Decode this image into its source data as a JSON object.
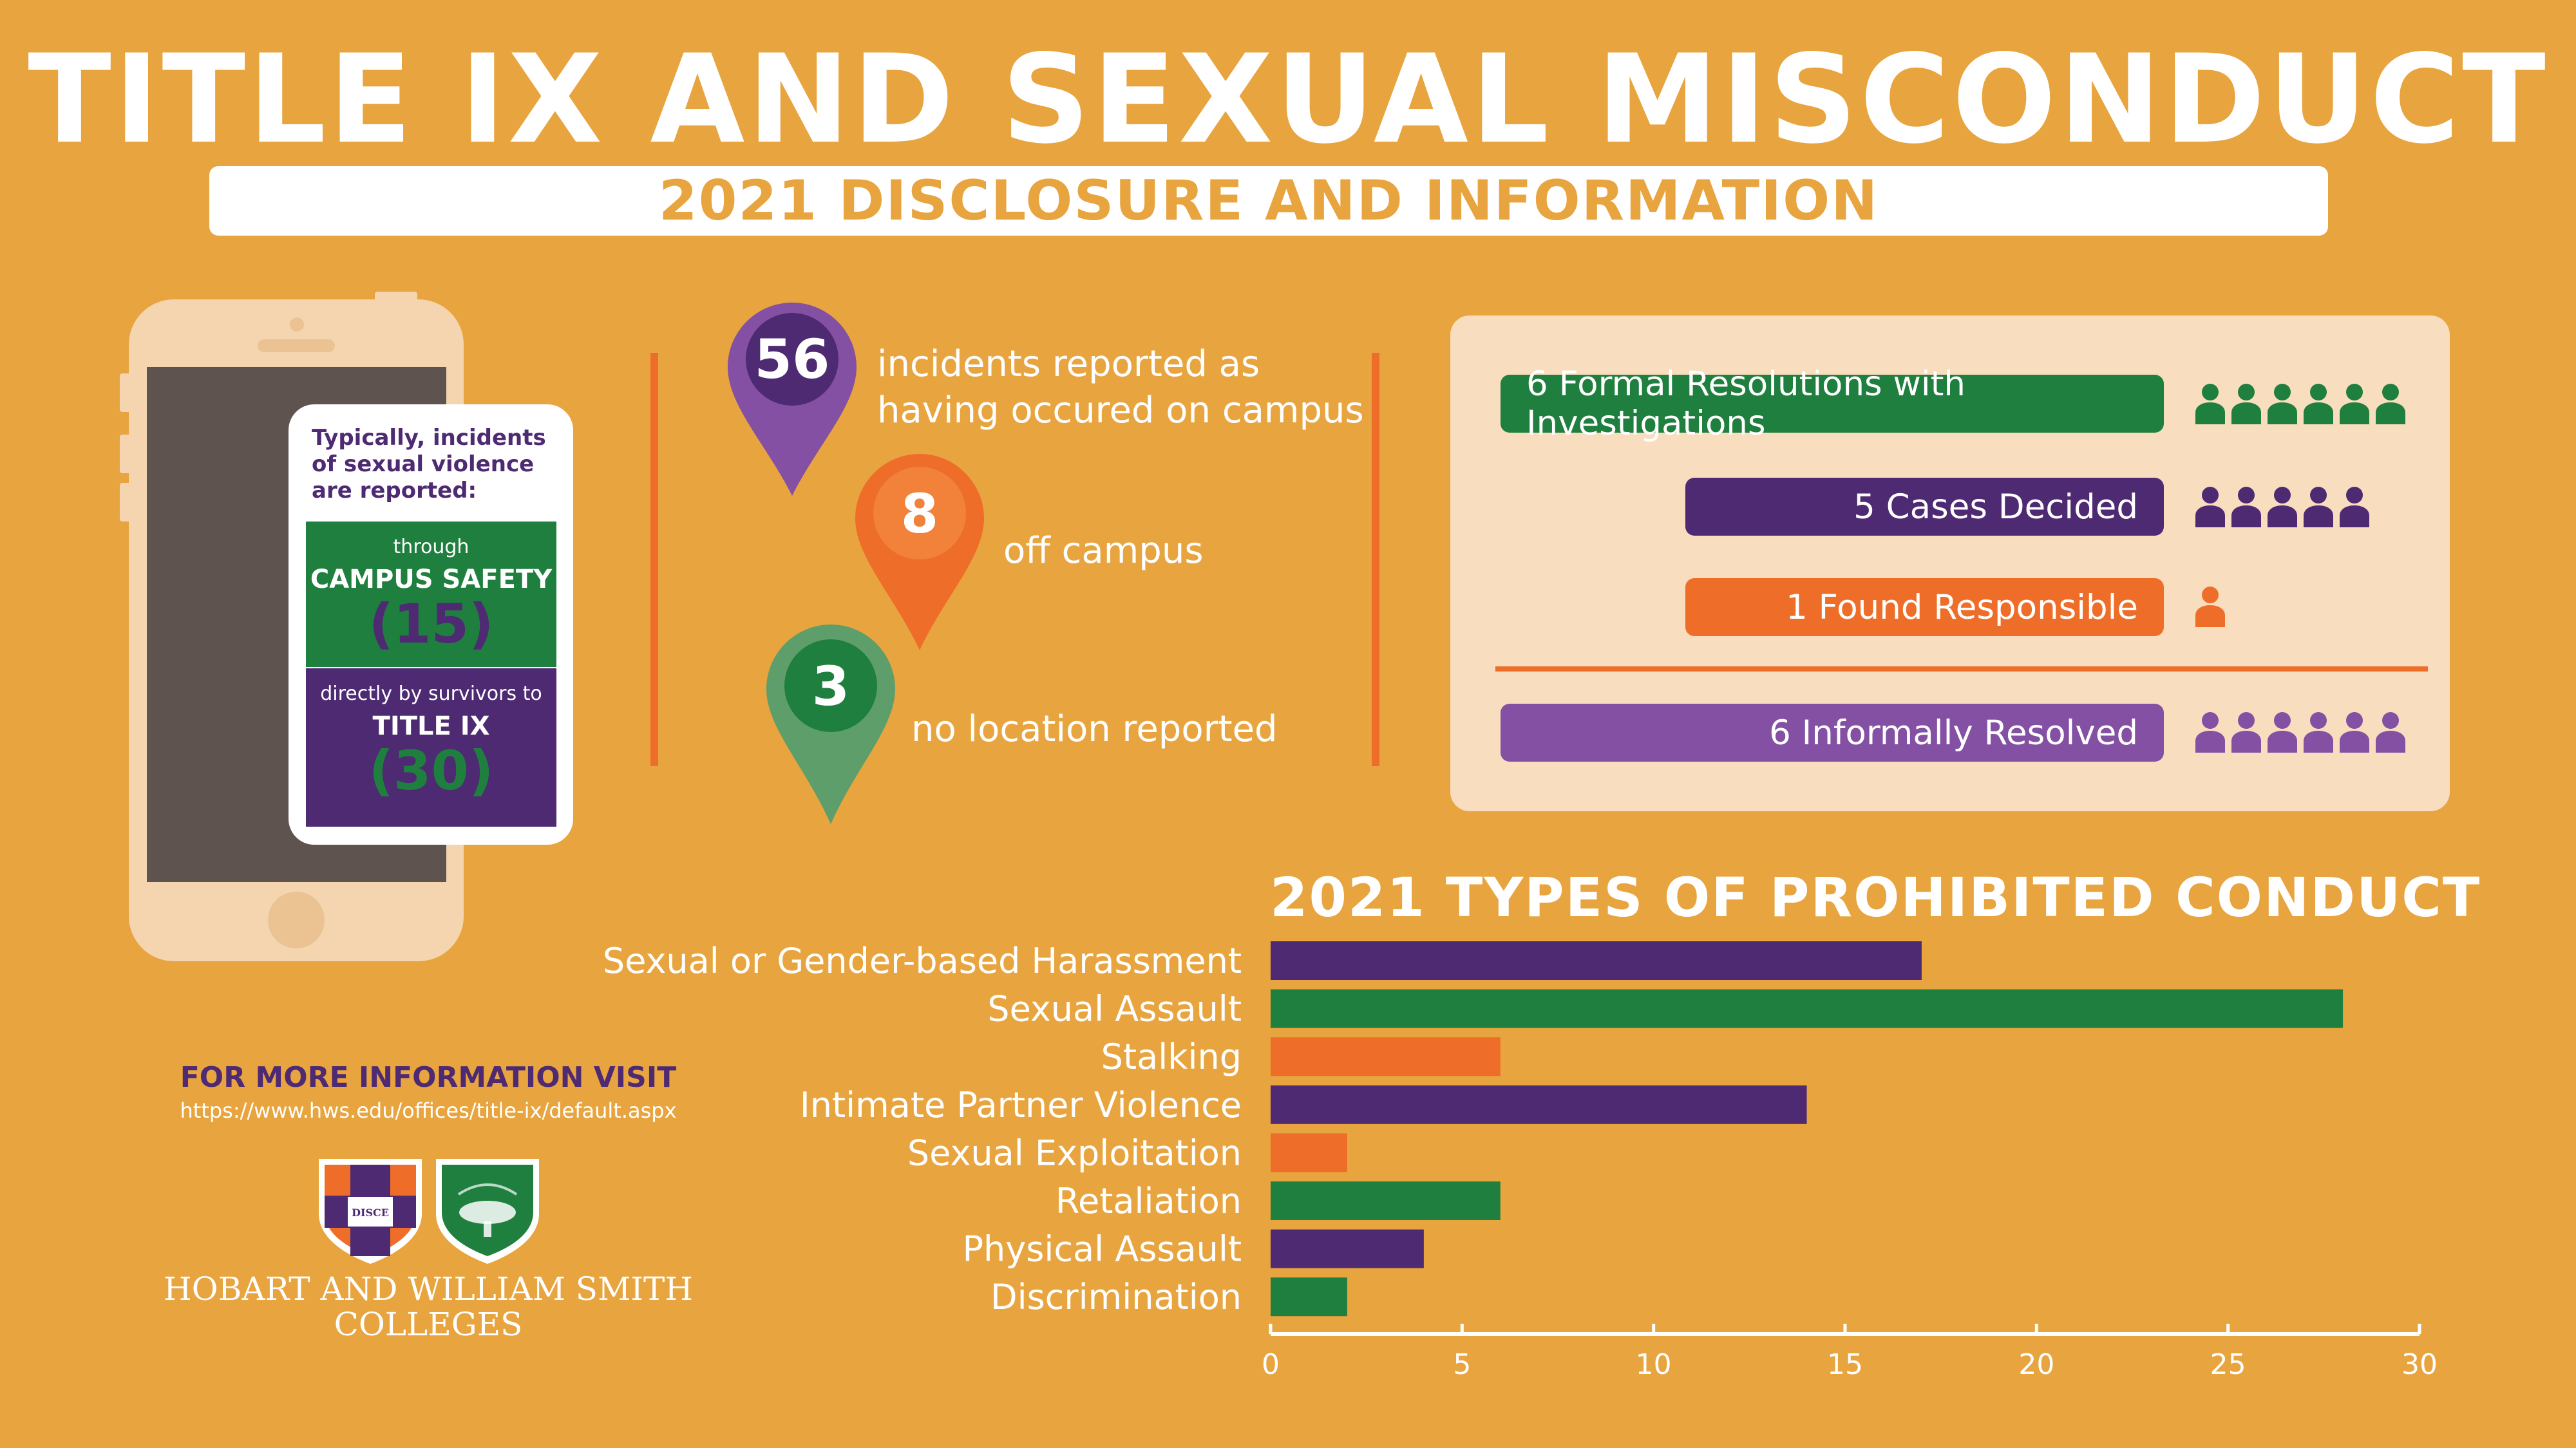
{
  "header": {
    "title": "TITLE IX AND SEXUAL MISCONDUCT",
    "subtitle": "2021 DISCLOSURE AND INFORMATION"
  },
  "colors": {
    "background": "#E8A43E",
    "purple": "#4E2A73",
    "green": "#1F7F3E",
    "orange": "#EE6E29",
    "light_purple": "#8350A3",
    "panel": "#F8DDBE"
  },
  "phone_card": {
    "heading": "Typically, incidents of sexual violence are reported:",
    "green_prefix": "through",
    "green_label": "CAMPUS SAFETY",
    "green_count": "(15)",
    "purple_prefix": "directly by survivors to",
    "purple_label": "TITLE IX",
    "purple_count": "(30)"
  },
  "locations": [
    {
      "number": "56",
      "text_line1": "incidents reported as",
      "text_line2": "having occured on campus"
    },
    {
      "number": "8",
      "text_line1": "off campus",
      "text_line2": ""
    },
    {
      "number": "3",
      "text_line1": "no location reported",
      "text_line2": ""
    }
  ],
  "resolutions": [
    {
      "label": "6 Formal Resolutions with Investigations",
      "count": 6
    },
    {
      "label": "5 Cases Decided",
      "count": 5
    },
    {
      "label": "1 Found Responsible",
      "count": 1
    },
    {
      "label": "6 Informally Resolved",
      "count": 6
    }
  ],
  "info": {
    "heading": "FOR MORE INFORMATION VISIT",
    "url": "https://www.hws.edu/offices/title-ix/default.aspx",
    "college_line1": "HOBART AND WILLIAM SMITH",
    "college_line2": "COLLEGES",
    "seal_text": "DISCE"
  },
  "chart_data": {
    "type": "bar",
    "orientation": "horizontal",
    "title": "2021 TYPES OF PROHIBITED CONDUCT",
    "categories": [
      "Sexual or Gender-based Harassment",
      "Sexual Assault",
      "Stalking",
      "Intimate Partner Violence",
      "Sexual Exploitation",
      "Retaliation",
      "Physical Assault",
      "Discrimination"
    ],
    "values": [
      17,
      28,
      6,
      14,
      2,
      6,
      4,
      2
    ],
    "bar_colors": [
      "#4E2A73",
      "#1F7F3E",
      "#EE6E29",
      "#4E2A73",
      "#EE6E29",
      "#1F7F3E",
      "#4E2A73",
      "#1F7F3E"
    ],
    "xlim": [
      0,
      30
    ],
    "xticks": [
      0,
      5,
      10,
      15,
      20,
      25,
      30
    ],
    "grid": false
  }
}
